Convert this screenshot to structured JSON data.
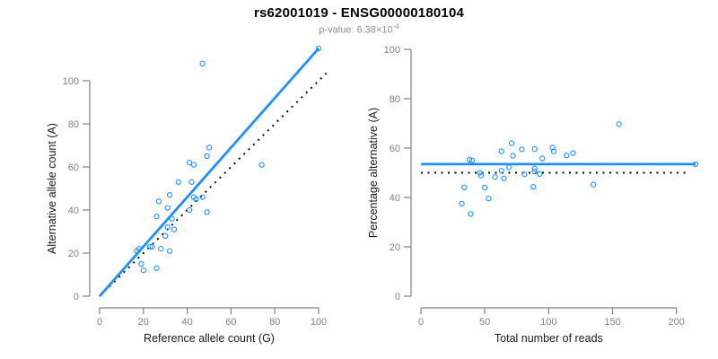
{
  "header": {
    "title": "rs62001019 - ENSG00000180104",
    "pvalue_prefix": "p-value: 6.38×10",
    "pvalue_exponent": "-4"
  },
  "colors": {
    "accent_blue": "#1E90FF",
    "dotted_black": "#000000",
    "axis_gray": "#808080",
    "tick_label_gray": "#808080",
    "axis_title_dark": "#1a1a1a",
    "subtitle_gray": "#8c8c8c",
    "title_black": "#000000",
    "background": "#ffffff"
  },
  "chart_data": [
    {
      "type": "scatter",
      "panel": "left",
      "xlabel": "Reference allele count (G)",
      "ylabel": "Alternative allele count (A)",
      "xticks": [
        0,
        20,
        40,
        60,
        80,
        100
      ],
      "yticks": [
        0,
        20,
        40,
        60,
        80,
        100
      ],
      "xlim": [
        0,
        100
      ],
      "ylim": [
        0,
        115
      ],
      "grid": false,
      "legend": "none",
      "marker": "open-circle",
      "points": [
        [
          19,
          15
        ],
        [
          20,
          12
        ],
        [
          26,
          13
        ],
        [
          18,
          22
        ],
        [
          17,
          21
        ],
        [
          23,
          23
        ],
        [
          24,
          23
        ],
        [
          28,
          22
        ],
        [
          32,
          21
        ],
        [
          26,
          37
        ],
        [
          27,
          44
        ],
        [
          30,
          28
        ],
        [
          31,
          32
        ],
        [
          34,
          31
        ],
        [
          31,
          41
        ],
        [
          33,
          36
        ],
        [
          36,
          53
        ],
        [
          41,
          62
        ],
        [
          43,
          61
        ],
        [
          42,
          53
        ],
        [
          32,
          47
        ],
        [
          43,
          46
        ],
        [
          44,
          45
        ],
        [
          47,
          46
        ],
        [
          41,
          40
        ],
        [
          49,
          39
        ],
        [
          49,
          65
        ],
        [
          50,
          69
        ],
        [
          74,
          61
        ],
        [
          47,
          108
        ],
        [
          100,
          115
        ]
      ],
      "lines": [
        {
          "name": "identity-line",
          "style": "dotted",
          "x1": 0,
          "y1": 0,
          "x2": 105,
          "y2": 105
        },
        {
          "name": "fit-line",
          "style": "solid",
          "x1": 0,
          "y1": 0,
          "x2": 100,
          "y2": 115
        }
      ]
    },
    {
      "type": "scatter",
      "panel": "right",
      "xlabel": "Total number of reads",
      "ylabel": "Percentage alternative (A)",
      "xticks": [
        0,
        50,
        100,
        150,
        200
      ],
      "yticks": [
        0,
        20,
        40,
        60,
        80,
        100
      ],
      "xlim": [
        0,
        215
      ],
      "ylim": [
        0,
        100
      ],
      "grid": false,
      "legend": "none",
      "marker": "open-circle",
      "points": [
        [
          34,
          44.1
        ],
        [
          32,
          37.5
        ],
        [
          39,
          33.3
        ],
        [
          40,
          55.0
        ],
        [
          38,
          55.3
        ],
        [
          46,
          50.0
        ],
        [
          47,
          48.9
        ],
        [
          50,
          44.0
        ],
        [
          53,
          39.6
        ],
        [
          63,
          58.7
        ],
        [
          71,
          62.0
        ],
        [
          58,
          48.3
        ],
        [
          63,
          50.8
        ],
        [
          65,
          47.7
        ],
        [
          72,
          56.9
        ],
        [
          69,
          52.2
        ],
        [
          89,
          59.6
        ],
        [
          103,
          60.2
        ],
        [
          104,
          58.7
        ],
        [
          95,
          55.8
        ],
        [
          79,
          59.5
        ],
        [
          89,
          51.7
        ],
        [
          89,
          50.6
        ],
        [
          93,
          49.5
        ],
        [
          81,
          49.4
        ],
        [
          88,
          44.3
        ],
        [
          114,
          57.0
        ],
        [
          119,
          58.0
        ],
        [
          135,
          45.2
        ],
        [
          155,
          69.7
        ],
        [
          215,
          53.5
        ]
      ],
      "lines": [
        {
          "name": "null-line",
          "style": "dotted",
          "x1": 0,
          "y1": 50,
          "x2": 207,
          "y2": 50
        },
        {
          "name": "fit-line",
          "style": "solid",
          "x1": 0,
          "y1": 53.5,
          "x2": 215,
          "y2": 53.5
        }
      ]
    }
  ]
}
